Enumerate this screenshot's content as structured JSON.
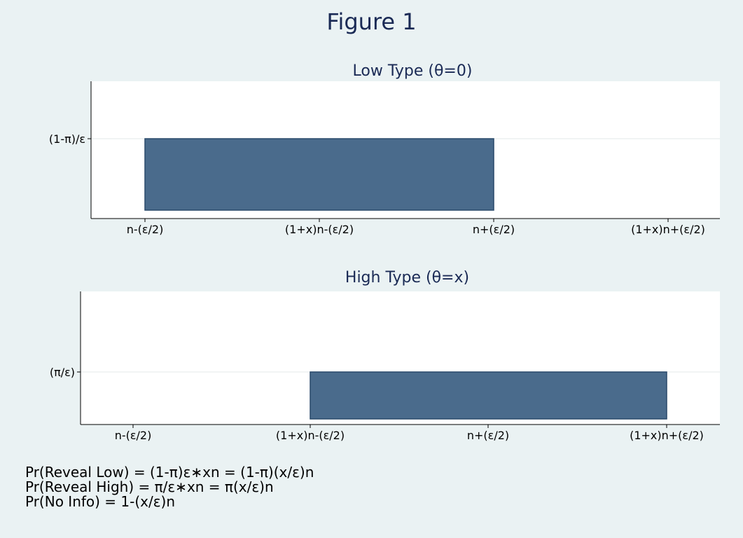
{
  "title": "Figure 1",
  "chart_data": [
    {
      "type": "bar",
      "title": "Low Type (θ=0)",
      "x_ticks": [
        "n-(ε/2)",
        "(1+x)n-(ε/2)",
        "n+(ε/2)",
        "(1+x)n+(ε/2)"
      ],
      "y_ticks": [
        "(1-π)/ε"
      ],
      "bar": {
        "x_start": "n-(ε/2)",
        "x_end": "n+(ε/2)",
        "height": "(1-π)/ε"
      },
      "grid": true,
      "color": "#4a6b8c"
    },
    {
      "type": "bar",
      "title": "High Type (θ=x)",
      "x_ticks": [
        "n-(ε/2)",
        "(1+x)n-(ε/2)",
        "n+(ε/2)",
        "(1+x)n+(ε/2)"
      ],
      "y_ticks": [
        "(π/ε)"
      ],
      "bar": {
        "x_start": "(1+x)n-(ε/2)",
        "x_end": "(1+x)n+(ε/2)",
        "height": "(π/ε)"
      },
      "grid": true,
      "color": "#4a6b8c"
    }
  ],
  "notes": [
    "Pr(Reveal Low) = (1-π)ε∗xn = (1-π)(x/ε)n",
    "Pr(Reveal High) = π/ε∗xn = π(x/ε)n",
    "Pr(No Info) = 1-(x/ε)n"
  ]
}
